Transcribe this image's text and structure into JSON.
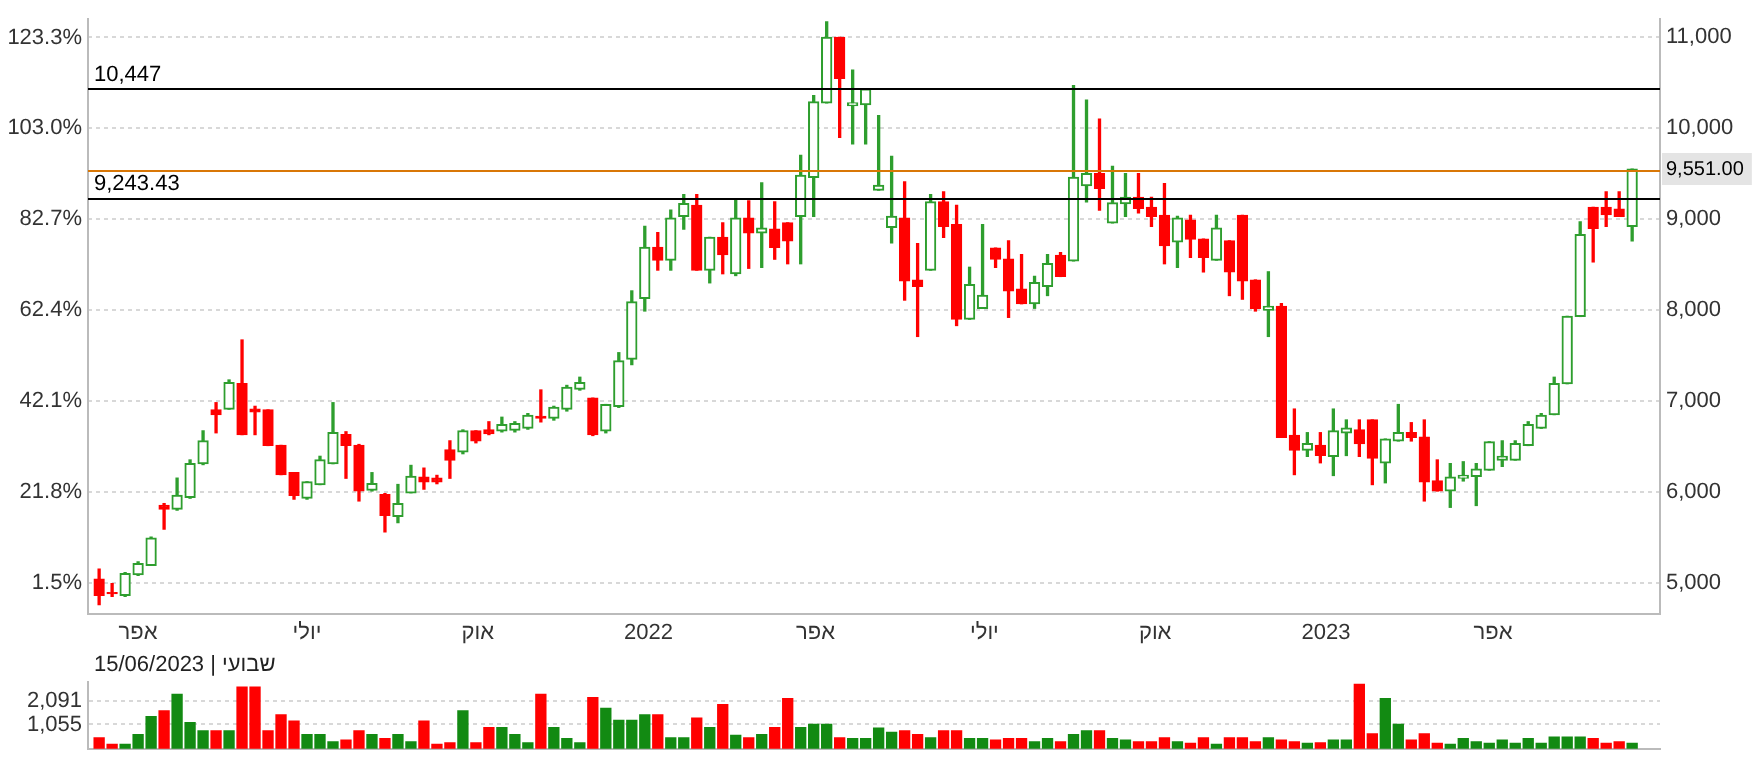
{
  "chart_data": [
    {
      "type": "candlestick",
      "x": [
        "2021-03-11",
        "2021-03-18",
        "2021-03-25",
        "2021-04-01",
        "2021-04-08",
        "2021-04-15",
        "2021-04-22",
        "2021-04-29",
        "2021-05-06",
        "2021-05-13",
        "2021-05-20",
        "2021-05-27",
        "2021-06-03",
        "2021-06-10",
        "2021-06-17",
        "2021-06-24",
        "2021-07-01",
        "2021-07-08",
        "2021-07-15",
        "2021-07-22",
        "2021-07-29",
        "2021-08-05",
        "2021-08-12",
        "2021-08-19",
        "2021-08-26",
        "2021-09-02",
        "2021-09-09",
        "2021-09-16",
        "2021-09-23",
        "2021-09-30",
        "2021-10-07",
        "2021-10-14",
        "2021-10-21",
        "2021-10-28",
        "2021-11-04",
        "2021-11-11",
        "2021-11-18",
        "2021-11-25",
        "2021-12-02",
        "2021-12-09",
        "2021-12-16",
        "2021-12-23",
        "2021-12-30",
        "2022-01-06",
        "2022-01-13",
        "2022-01-20",
        "2022-01-27",
        "2022-02-03",
        "2022-02-10",
        "2022-02-17",
        "2022-02-24",
        "2022-03-03",
        "2022-03-10",
        "2022-03-17",
        "2022-03-24",
        "2022-03-31",
        "2022-04-07",
        "2022-04-14",
        "2022-04-21",
        "2022-04-28",
        "2022-05-05",
        "2022-05-12",
        "2022-05-19",
        "2022-05-26",
        "2022-06-02",
        "2022-06-09",
        "2022-06-16",
        "2022-06-23",
        "2022-06-30",
        "2022-07-07",
        "2022-07-14",
        "2022-07-21",
        "2022-07-28",
        "2022-08-04",
        "2022-08-11",
        "2022-08-18",
        "2022-08-25",
        "2022-09-01",
        "2022-09-08",
        "2022-09-15",
        "2022-09-22",
        "2022-09-29",
        "2022-10-06",
        "2022-10-13",
        "2022-10-20",
        "2022-10-27",
        "2022-11-03",
        "2022-11-10",
        "2022-11-17",
        "2022-11-24",
        "2022-12-01",
        "2022-12-08",
        "2022-12-15",
        "2022-12-22",
        "2022-12-29",
        "2023-01-05",
        "2023-01-12",
        "2023-01-19",
        "2023-01-26",
        "2023-02-02",
        "2023-02-09",
        "2023-02-16",
        "2023-02-23",
        "2023-03-02",
        "2023-03-09",
        "2023-03-16",
        "2023-03-23",
        "2023-03-30",
        "2023-04-06",
        "2023-04-13",
        "2023-04-20",
        "2023-04-27",
        "2023-05-04",
        "2023-05-11",
        "2023-05-18",
        "2023-05-25",
        "2023-06-01",
        "2023-06-08",
        "2023-06-15"
      ],
      "ohlc": [
        [
          5040,
          5150,
          4760,
          4860
        ],
        [
          4890,
          4990,
          4850,
          4880
        ],
        [
          4860,
          5110,
          4850,
          5100
        ],
        [
          5090,
          5230,
          5080,
          5210
        ],
        [
          5190,
          5500,
          5190,
          5490
        ],
        [
          5850,
          5870,
          5590,
          5810
        ],
        [
          5810,
          6150,
          5800,
          5960
        ],
        [
          5940,
          6350,
          5930,
          6310
        ],
        [
          6310,
          6670,
          6300,
          6560
        ],
        [
          6900,
          6980,
          6650,
          6850
        ],
        [
          6910,
          7230,
          6910,
          7200
        ],
        [
          7190,
          7670,
          6630,
          6630
        ],
        [
          6910,
          6940,
          6630,
          6880
        ],
        [
          6900,
          6900,
          6510,
          6510
        ],
        [
          6510,
          6510,
          6190,
          6190
        ],
        [
          6210,
          6210,
          5920,
          5960
        ],
        [
          5930,
          6110,
          5920,
          6110
        ],
        [
          6080,
          6390,
          6080,
          6350
        ],
        [
          6310,
          6980,
          6310,
          6650
        ],
        [
          6630,
          6660,
          6150,
          6510
        ],
        [
          6510,
          6520,
          5900,
          6010
        ],
        [
          6020,
          6210,
          6010,
          6090
        ],
        [
          5970,
          5980,
          5560,
          5740
        ],
        [
          5730,
          6080,
          5660,
          5870
        ],
        [
          5990,
          6290,
          5990,
          6170
        ],
        [
          6160,
          6260,
          6030,
          6110
        ],
        [
          6150,
          6180,
          6090,
          6110
        ],
        [
          6460,
          6560,
          6150,
          6350
        ],
        [
          6440,
          6680,
          6420,
          6670
        ],
        [
          6670,
          6670,
          6540,
          6560
        ],
        [
          6680,
          6770,
          6630,
          6640
        ],
        [
          6670,
          6820,
          6660,
          6740
        ],
        [
          6680,
          6770,
          6660,
          6750
        ],
        [
          6700,
          6860,
          6690,
          6840
        ],
        [
          6830,
          7120,
          6770,
          6810
        ],
        [
          6810,
          6940,
          6790,
          6930
        ],
        [
          6910,
          7170,
          6890,
          7150
        ],
        [
          7130,
          7260,
          7120,
          7200
        ],
        [
          7030,
          7030,
          6620,
          6630
        ],
        [
          6670,
          6960,
          6650,
          6960
        ],
        [
          6940,
          7530,
          6930,
          7440
        ],
        [
          7460,
          8210,
          7400,
          8090
        ],
        [
          8130,
          8920,
          7990,
          8690
        ],
        [
          8690,
          8850,
          8440,
          8550
        ],
        [
          8550,
          9100,
          8440,
          9010
        ],
        [
          9030,
          9270,
          8890,
          9170
        ],
        [
          9150,
          9270,
          8440,
          8440
        ],
        [
          8440,
          8800,
          8300,
          8800
        ],
        [
          8800,
          8960,
          8400,
          8610
        ],
        [
          8400,
          9210,
          8380,
          9010
        ],
        [
          9010,
          9200,
          8460,
          8850
        ],
        [
          8850,
          9400,
          8470,
          8900
        ],
        [
          8890,
          9190,
          8560,
          8690
        ],
        [
          8960,
          8960,
          8510,
          8760
        ],
        [
          9030,
          9700,
          8510,
          9480
        ],
        [
          9460,
          10360,
          9030,
          10290
        ],
        [
          10280,
          11170,
          10280,
          11000
        ],
        [
          11000,
          11000,
          9900,
          10550
        ],
        [
          10250,
          10640,
          9830,
          10280
        ],
        [
          10260,
          10430,
          9830,
          10430
        ],
        [
          9320,
          10140,
          9320,
          9370
        ],
        [
          8910,
          9690,
          8740,
          9030
        ],
        [
          9010,
          9410,
          8110,
          8320
        ],
        [
          8330,
          8730,
          7710,
          8260
        ],
        [
          8440,
          9270,
          8440,
          9190
        ],
        [
          9190,
          9300,
          8800,
          8920
        ],
        [
          8940,
          9150,
          7830,
          7900
        ],
        [
          7900,
          8470,
          7900,
          8280
        ],
        [
          8020,
          8940,
          8020,
          8160
        ],
        [
          8680,
          8680,
          8470,
          8560
        ],
        [
          8560,
          8760,
          7920,
          8210
        ],
        [
          8230,
          8610,
          8070,
          8070
        ],
        [
          8070,
          8370,
          8020,
          8300
        ],
        [
          8260,
          8610,
          8160,
          8510
        ],
        [
          8600,
          8630,
          8370,
          8370
        ],
        [
          8540,
          10470,
          8540,
          9460
        ],
        [
          9370,
          10310,
          9190,
          9500
        ],
        [
          9500,
          10100,
          9100,
          9340
        ],
        [
          8960,
          9580,
          8960,
          9180
        ],
        [
          9170,
          9500,
          9030,
          9240
        ],
        [
          9240,
          9500,
          9070,
          9120
        ],
        [
          9130,
          9240,
          8920,
          9030
        ],
        [
          9040,
          9390,
          8510,
          8710
        ],
        [
          8750,
          9030,
          8470,
          9010
        ],
        [
          8990,
          9040,
          8580,
          8780
        ],
        [
          8780,
          8780,
          8420,
          8580
        ],
        [
          8550,
          9040,
          8550,
          8900
        ],
        [
          8760,
          8760,
          8160,
          8420
        ],
        [
          9040,
          9040,
          8120,
          8320
        ],
        [
          8330,
          8330,
          7990,
          8020
        ],
        [
          8000,
          8420,
          7710,
          8040
        ],
        [
          8040,
          8070,
          6600,
          6600
        ],
        [
          6620,
          6910,
          6190,
          6460
        ],
        [
          6460,
          6650,
          6390,
          6530
        ],
        [
          6510,
          6650,
          6320,
          6400
        ],
        [
          6390,
          6910,
          6180,
          6670
        ],
        [
          6650,
          6790,
          6400,
          6700
        ],
        [
          6680,
          6790,
          6390,
          6530
        ],
        [
          6790,
          6790,
          6080,
          6370
        ],
        [
          6320,
          6580,
          6100,
          6580
        ],
        [
          6560,
          6960,
          6560,
          6650
        ],
        [
          6650,
          6760,
          6560,
          6600
        ],
        [
          6600,
          6790,
          5900,
          6110
        ],
        [
          6120,
          6350,
          6010,
          6010
        ],
        [
          6010,
          6310,
          5830,
          6160
        ],
        [
          6150,
          6330,
          6120,
          6180
        ],
        [
          6170,
          6310,
          5850,
          6250
        ],
        [
          6240,
          6550,
          6240,
          6550
        ],
        [
          6350,
          6560,
          6280,
          6390
        ],
        [
          6350,
          6560,
          6350,
          6530
        ],
        [
          6510,
          6770,
          6510,
          6740
        ],
        [
          6700,
          6860,
          6700,
          6840
        ],
        [
          6850,
          7260,
          6850,
          7190
        ],
        [
          7190,
          7930,
          7190,
          7930
        ],
        [
          7930,
          8970,
          7930,
          8830
        ],
        [
          9130,
          9130,
          8530,
          8900
        ],
        [
          9130,
          9300,
          8920,
          9050
        ],
        [
          9110,
          9300,
          9030,
          9030
        ],
        [
          8920,
          9551,
          8760,
          9551
        ]
      ],
      "colors": [
        "#ff0000",
        "#ff0000",
        "#2e9e2e",
        "#2e9e2e",
        "#2e9e2e",
        "#ff0000",
        "#2e9e2e",
        "#2e9e2e",
        "#2e9e2e",
        "#ff0000",
        "#2e9e2e",
        "#ff0000",
        "#ff0000",
        "#ff0000",
        "#ff0000",
        "#ff0000",
        "#2e9e2e",
        "#2e9e2e",
        "#2e9e2e",
        "#ff0000",
        "#ff0000",
        "#2e9e2e",
        "#ff0000",
        "#2e9e2e",
        "#2e9e2e",
        "#ff0000",
        "#ff0000",
        "#ff0000",
        "#2e9e2e",
        "#ff0000",
        "#ff0000",
        "#2e9e2e",
        "#2e9e2e",
        "#2e9e2e",
        "#ff0000",
        "#2e9e2e",
        "#2e9e2e",
        "#2e9e2e",
        "#ff0000",
        "#2e9e2e",
        "#2e9e2e",
        "#2e9e2e",
        "#2e9e2e",
        "#ff0000",
        "#2e9e2e",
        "#2e9e2e",
        "#ff0000",
        "#2e9e2e",
        "#ff0000",
        "#2e9e2e",
        "#ff0000",
        "#2e9e2e",
        "#ff0000",
        "#ff0000",
        "#2e9e2e",
        "#2e9e2e",
        "#2e9e2e",
        "#ff0000",
        "#2e9e2e",
        "#2e9e2e",
        "#2e9e2e",
        "#2e9e2e",
        "#ff0000",
        "#ff0000",
        "#2e9e2e",
        "#ff0000",
        "#ff0000",
        "#2e9e2e",
        "#2e9e2e",
        "#ff0000",
        "#ff0000",
        "#ff0000",
        "#2e9e2e",
        "#2e9e2e",
        "#ff0000",
        "#2e9e2e",
        "#2e9e2e",
        "#ff0000",
        "#2e9e2e",
        "#2e9e2e",
        "#ff0000",
        "#ff0000",
        "#ff0000",
        "#2e9e2e",
        "#ff0000",
        "#ff0000",
        "#2e9e2e",
        "#ff0000",
        "#ff0000",
        "#ff0000",
        "#2e9e2e",
        "#ff0000",
        "#ff0000",
        "#2e9e2e",
        "#ff0000",
        "#2e9e2e",
        "#2e9e2e",
        "#ff0000",
        "#ff0000",
        "#2e9e2e",
        "#2e9e2e",
        "#ff0000",
        "#ff0000",
        "#ff0000",
        "#2e9e2e",
        "#2e9e2e",
        "#2e9e2e",
        "#2e9e2e",
        "#2e9e2e",
        "#2e9e2e",
        "#2e9e2e",
        "#2e9e2e",
        "#2e9e2e",
        "#2e9e2e",
        "#2e9e2e",
        "#ff0000",
        "#ff0000",
        "#ff0000",
        "#2e9e2e"
      ],
      "xlim": [
        "2021-03-05",
        "2023-06-30"
      ],
      "xticks": [
        {
          "value": "2021-04-01",
          "label": "אפר"
        },
        {
          "value": "2021-07-01",
          "label": "יולי"
        },
        {
          "value": "2021-10-01",
          "label": "אוק"
        },
        {
          "value": "2022-01-01",
          "label": "2022"
        },
        {
          "value": "2022-04-01",
          "label": "אפר"
        },
        {
          "value": "2022-07-01",
          "label": "יולי"
        },
        {
          "value": "2022-10-01",
          "label": "אוק"
        },
        {
          "value": "2023-01-01",
          "label": "2023"
        },
        {
          "value": "2023-04-01",
          "label": "אפר"
        }
      ],
      "ylim": [
        4660,
        11200
      ],
      "yticks": [
        {
          "value": 5000,
          "label": "5,000"
        },
        {
          "value": 6000,
          "label": "6,000"
        },
        {
          "value": 7000,
          "label": "7,000"
        },
        {
          "value": 8000,
          "label": "8,000"
        },
        {
          "value": 9000,
          "label": "9,000"
        },
        {
          "value": 10000,
          "label": "10,000"
        },
        {
          "value": 11000,
          "label": "11,000"
        }
      ],
      "y2lim": [
        -5.4,
        127.4
      ],
      "y2ticks": [
        {
          "value": 1.5,
          "label": "1.5%"
        },
        {
          "value": 21.8,
          "label": "21.8%"
        },
        {
          "value": 42.1,
          "label": "42.1%"
        },
        {
          "value": 62.4,
          "label": "62.4%"
        },
        {
          "value": 82.7,
          "label": "82.7%"
        },
        {
          "value": 103.0,
          "label": "103.0%"
        },
        {
          "value": 123.3,
          "label": "123.3%"
        }
      ],
      "grid": "y",
      "ref_lines": [
        {
          "axis": "y",
          "value": 10447,
          "label": "10,447",
          "color": "#000000"
        },
        {
          "axis": "y",
          "value": 9243.43,
          "label": "9,243.43",
          "color": "#000000"
        },
        {
          "axis": "y",
          "value": 9551,
          "label": "9,551.00",
          "color": "#d97706"
        }
      ]
    },
    {
      "type": "bar",
      "x": [
        "2021-03-11",
        "2021-03-18",
        "2021-03-25",
        "2021-04-01",
        "2021-04-08",
        "2021-04-15",
        "2021-04-22",
        "2021-04-29",
        "2021-05-06",
        "2021-05-13",
        "2021-05-20",
        "2021-05-27",
        "2021-06-03",
        "2021-06-10",
        "2021-06-17",
        "2021-06-24",
        "2021-07-01",
        "2021-07-08",
        "2021-07-15",
        "2021-07-22",
        "2021-07-29",
        "2021-08-05",
        "2021-08-12",
        "2021-08-19",
        "2021-08-26",
        "2021-09-02",
        "2021-09-09",
        "2021-09-16",
        "2021-09-23",
        "2021-09-30",
        "2021-10-07",
        "2021-10-14",
        "2021-10-21",
        "2021-10-28",
        "2021-11-04",
        "2021-11-11",
        "2021-11-18",
        "2021-11-25",
        "2021-12-02",
        "2021-12-09",
        "2021-12-16",
        "2021-12-23",
        "2021-12-30",
        "2022-01-06",
        "2022-01-13",
        "2022-01-20",
        "2022-01-27",
        "2022-02-03",
        "2022-02-10",
        "2022-02-17",
        "2022-02-24",
        "2022-03-03",
        "2022-03-10",
        "2022-03-17",
        "2022-03-24",
        "2022-03-31",
        "2022-04-07",
        "2022-04-14",
        "2022-04-21",
        "2022-04-28",
        "2022-05-05",
        "2022-05-12",
        "2022-05-19",
        "2022-05-26",
        "2022-06-02",
        "2022-06-09",
        "2022-06-16",
        "2022-06-23",
        "2022-06-30",
        "2022-07-07",
        "2022-07-14",
        "2022-07-21",
        "2022-07-28",
        "2022-08-04",
        "2022-08-11",
        "2022-08-18",
        "2022-08-25",
        "2022-09-01",
        "2022-09-08",
        "2022-09-15",
        "2022-09-22",
        "2022-09-29",
        "2022-10-06",
        "2022-10-13",
        "2022-10-20",
        "2022-10-27",
        "2022-11-03",
        "2022-11-10",
        "2022-11-17",
        "2022-11-24",
        "2022-12-01",
        "2022-12-08",
        "2022-12-15",
        "2022-12-22",
        "2022-12-29",
        "2023-01-05",
        "2023-01-12",
        "2023-01-19",
        "2023-01-26",
        "2023-02-02",
        "2023-02-09",
        "2023-02-16",
        "2023-02-23",
        "2023-03-02",
        "2023-03-09",
        "2023-03-16",
        "2023-03-23",
        "2023-03-30",
        "2023-04-06",
        "2023-04-13",
        "2023-04-20",
        "2023-04-27",
        "2023-05-04",
        "2023-05-11",
        "2023-05-18",
        "2023-05-25",
        "2023-06-01",
        "2023-06-08",
        "2023-06-15"
      ],
      "values": [
        470,
        190,
        190,
        610,
        1400,
        1640,
        2360,
        1130,
        780,
        780,
        780,
        2680,
        2680,
        780,
        1470,
        1200,
        610,
        610,
        300,
        370,
        780,
        610,
        440,
        610,
        300,
        1200,
        190,
        260,
        1640,
        260,
        920,
        920,
        610,
        260,
        2360,
        920,
        440,
        260,
        2220,
        1750,
        1230,
        1230,
        1470,
        1470,
        470,
        470,
        1330,
        920,
        1920,
        580,
        470,
        610,
        920,
        2180,
        920,
        1055,
        1055,
        470,
        440,
        440,
        900,
        710,
        780,
        610,
        470,
        780,
        780,
        440,
        440,
        370,
        440,
        440,
        300,
        440,
        300,
        610,
        780,
        780,
        440,
        370,
        300,
        300,
        470,
        300,
        230,
        470,
        190,
        470,
        470,
        300,
        470,
        370,
        300,
        230,
        260,
        370,
        370,
        2800,
        650,
        2180,
        1055,
        370,
        650,
        230,
        190,
        440,
        300,
        230,
        370,
        230,
        440,
        230,
        500,
        500,
        500,
        440,
        230,
        300,
        230
      ],
      "colors": [
        "#ff0000",
        "#ff0000",
        "#128a12",
        "#128a12",
        "#128a12",
        "#ff0000",
        "#128a12",
        "#128a12",
        "#128a12",
        "#ff0000",
        "#128a12",
        "#ff0000",
        "#ff0000",
        "#ff0000",
        "#ff0000",
        "#ff0000",
        "#128a12",
        "#128a12",
        "#128a12",
        "#ff0000",
        "#ff0000",
        "#128a12",
        "#ff0000",
        "#128a12",
        "#128a12",
        "#ff0000",
        "#ff0000",
        "#ff0000",
        "#128a12",
        "#ff0000",
        "#ff0000",
        "#128a12",
        "#128a12",
        "#128a12",
        "#ff0000",
        "#128a12",
        "#128a12",
        "#128a12",
        "#ff0000",
        "#128a12",
        "#128a12",
        "#128a12",
        "#128a12",
        "#ff0000",
        "#128a12",
        "#128a12",
        "#ff0000",
        "#128a12",
        "#ff0000",
        "#128a12",
        "#ff0000",
        "#128a12",
        "#ff0000",
        "#ff0000",
        "#128a12",
        "#128a12",
        "#128a12",
        "#ff0000",
        "#128a12",
        "#128a12",
        "#128a12",
        "#128a12",
        "#ff0000",
        "#ff0000",
        "#128a12",
        "#ff0000",
        "#ff0000",
        "#128a12",
        "#128a12",
        "#ff0000",
        "#ff0000",
        "#ff0000",
        "#128a12",
        "#128a12",
        "#ff0000",
        "#128a12",
        "#128a12",
        "#ff0000",
        "#128a12",
        "#128a12",
        "#ff0000",
        "#ff0000",
        "#ff0000",
        "#128a12",
        "#ff0000",
        "#ff0000",
        "#128a12",
        "#ff0000",
        "#ff0000",
        "#ff0000",
        "#128a12",
        "#ff0000",
        "#ff0000",
        "#128a12",
        "#ff0000",
        "#128a12",
        "#128a12",
        "#ff0000",
        "#ff0000",
        "#128a12",
        "#128a12",
        "#ff0000",
        "#ff0000",
        "#ff0000",
        "#128a12",
        "#128a12",
        "#128a12",
        "#128a12",
        "#128a12",
        "#128a12",
        "#128a12",
        "#128a12",
        "#128a12",
        "#128a12",
        "#128a12",
        "#ff0000",
        "#ff0000",
        "#ff0000",
        "#128a12"
      ],
      "xlim": [
        "2021-03-05",
        "2023-06-30"
      ],
      "ylim": [
        0,
        2900
      ],
      "yticks": [
        {
          "value": 1055,
          "label": "1,055"
        },
        {
          "value": 2091,
          "label": "2,091"
        }
      ],
      "tick_labels": "y",
      "grid": "y",
      "annotations": [
        "שבועי | 15/06/2023"
      ]
    }
  ]
}
